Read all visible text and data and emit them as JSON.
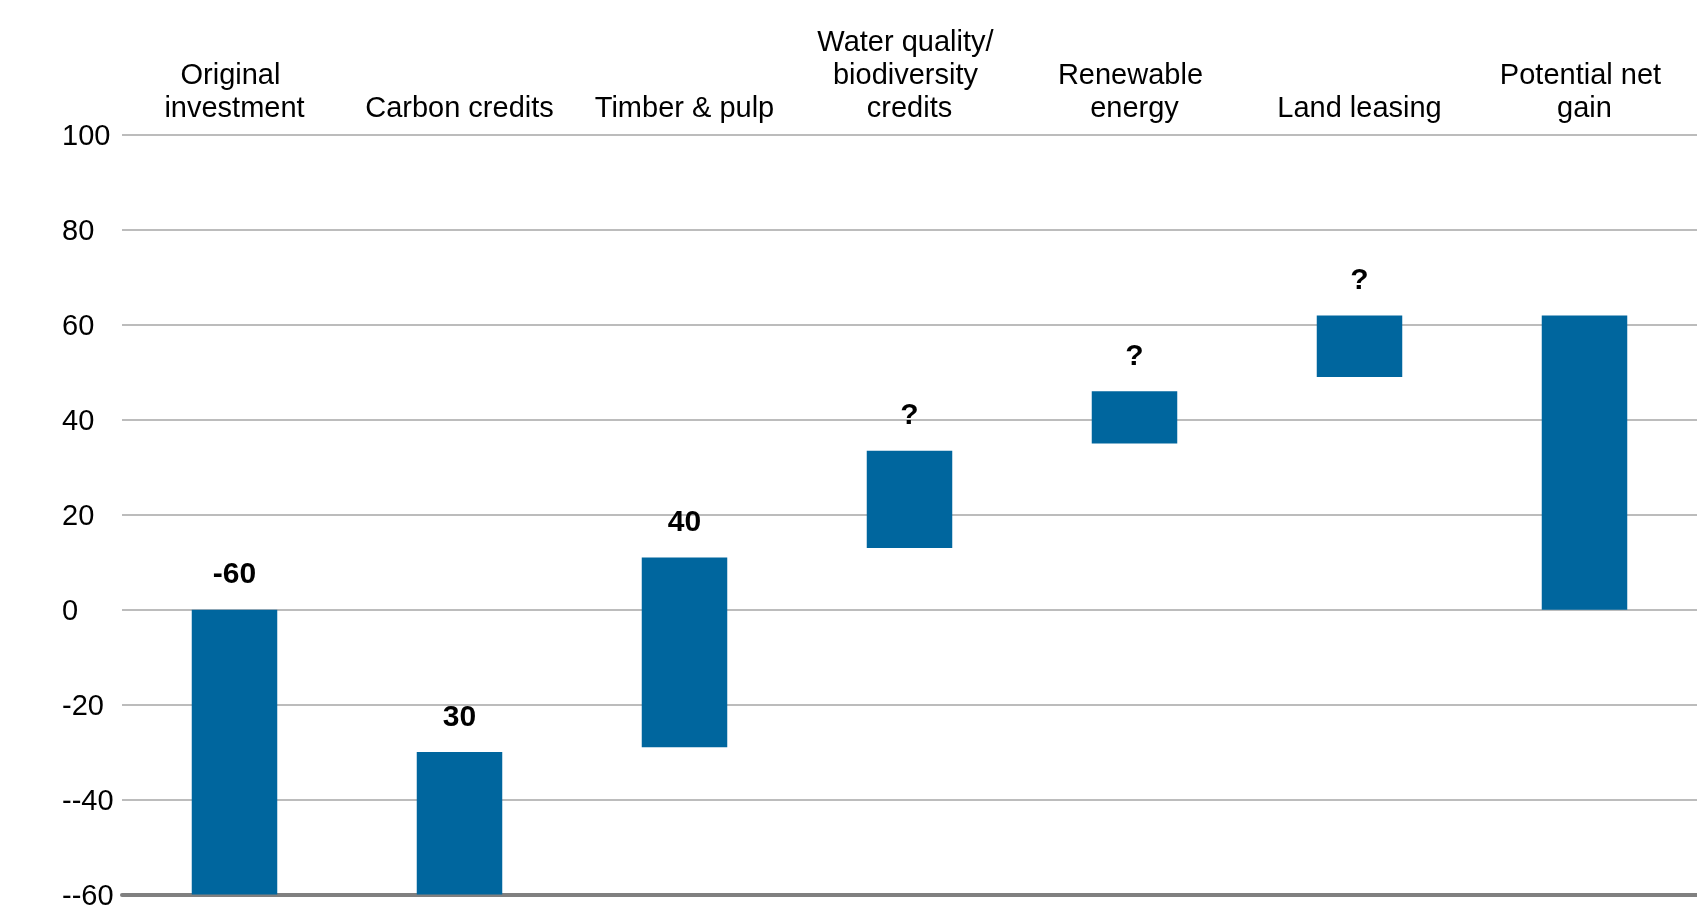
{
  "chart_data": {
    "type": "bar",
    "categories": [
      "Original investment",
      "Carbon credits",
      "Timber & pulp",
      "Water quality/ biodiversity credits",
      "Renewable energy",
      "Land leasing",
      "Potential net gain"
    ],
    "values": [
      -60,
      30,
      40,
      20.5,
      11,
      13,
      62
    ],
    "base": [
      0,
      -60,
      -29,
      13,
      35,
      49,
      0
    ],
    "value_labels": [
      "-60",
      "30",
      "40",
      "?",
      "?",
      "?",
      null
    ],
    "color": "#00669e",
    "ylim": [
      -60,
      100
    ],
    "yticks": [
      {
        "value": -60,
        "label": "--60"
      },
      {
        "value": -40,
        "label": "--40"
      },
      -20,
      0,
      20,
      40,
      60,
      80,
      100
    ],
    "grid": "y"
  }
}
